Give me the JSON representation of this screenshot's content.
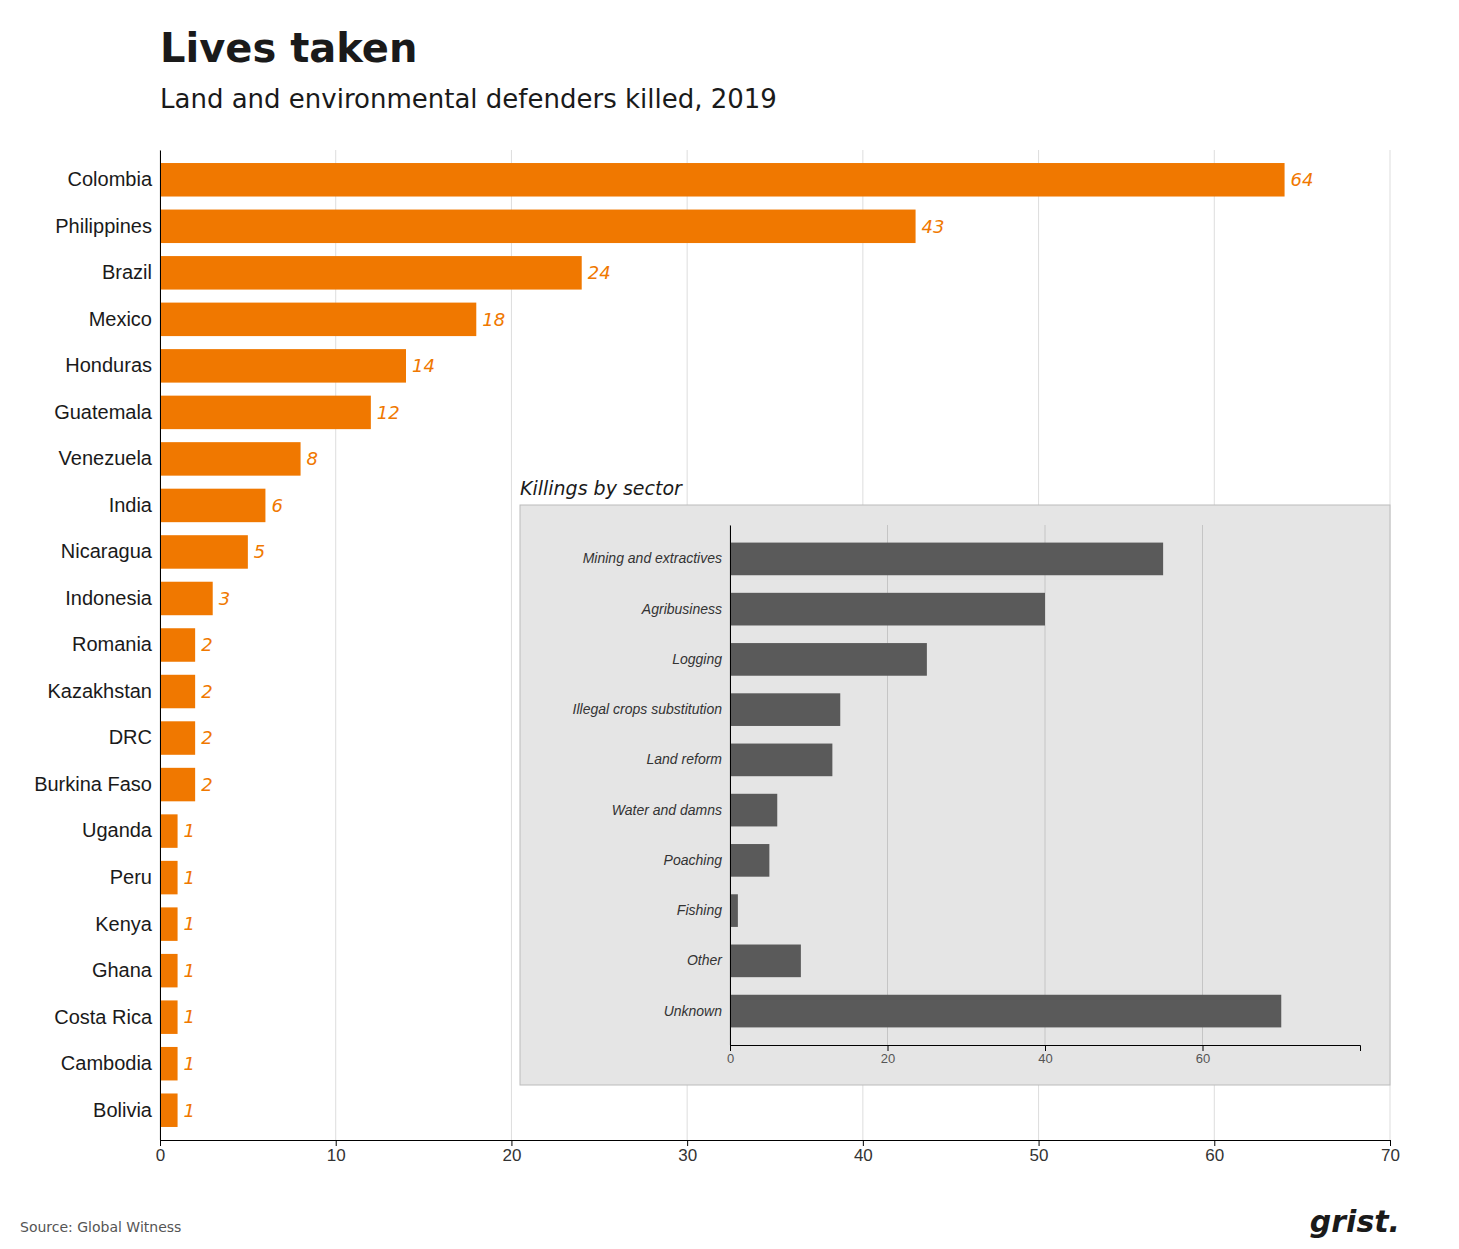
{
  "chart_data": [
    {
      "type": "bar",
      "orientation": "horizontal",
      "title": "Lives taken",
      "subtitle": "Land and environmental defenders killed, 2019",
      "annotations": [
        "Source: Global Witness",
        "grist."
      ],
      "categories": [
        "Colombia",
        "Philippines",
        "Brazil",
        "Mexico",
        "Honduras",
        "Guatemala",
        "Venezuela",
        "India",
        "Nicaragua",
        "Indonesia",
        "Romania",
        "Kazakhstan",
        "DRC",
        "Burkina Faso",
        "Uganda",
        "Peru",
        "Kenya",
        "Ghana",
        "Costa Rica",
        "Cambodia",
        "Bolivia"
      ],
      "values": [
        64,
        43,
        24,
        18,
        14,
        12,
        8,
        6,
        5,
        3,
        2,
        2,
        2,
        2,
        1,
        1,
        1,
        1,
        1,
        1,
        1
      ],
      "color": "#f07800",
      "xlim": [
        0,
        70
      ],
      "xticks": [
        0,
        10,
        20,
        30,
        40,
        50,
        60,
        70
      ],
      "grid": true,
      "data_labels": true
    },
    {
      "type": "bar",
      "orientation": "horizontal",
      "title": "Killings by sector",
      "categories": [
        "Mining and extractives",
        "Agribusiness",
        "Logging",
        "Illegal crops substitution",
        "Land reform",
        "Water and damns",
        "Poaching",
        "Fishing",
        "Other",
        "Unknown"
      ],
      "values": [
        55,
        40,
        25,
        14,
        13,
        6,
        5,
        1,
        9,
        70
      ],
      "color": "#5a5a5a",
      "xlim": [
        0,
        80
      ],
      "xticks": [
        0,
        20,
        40,
        60
      ],
      "grid": true
    }
  ]
}
